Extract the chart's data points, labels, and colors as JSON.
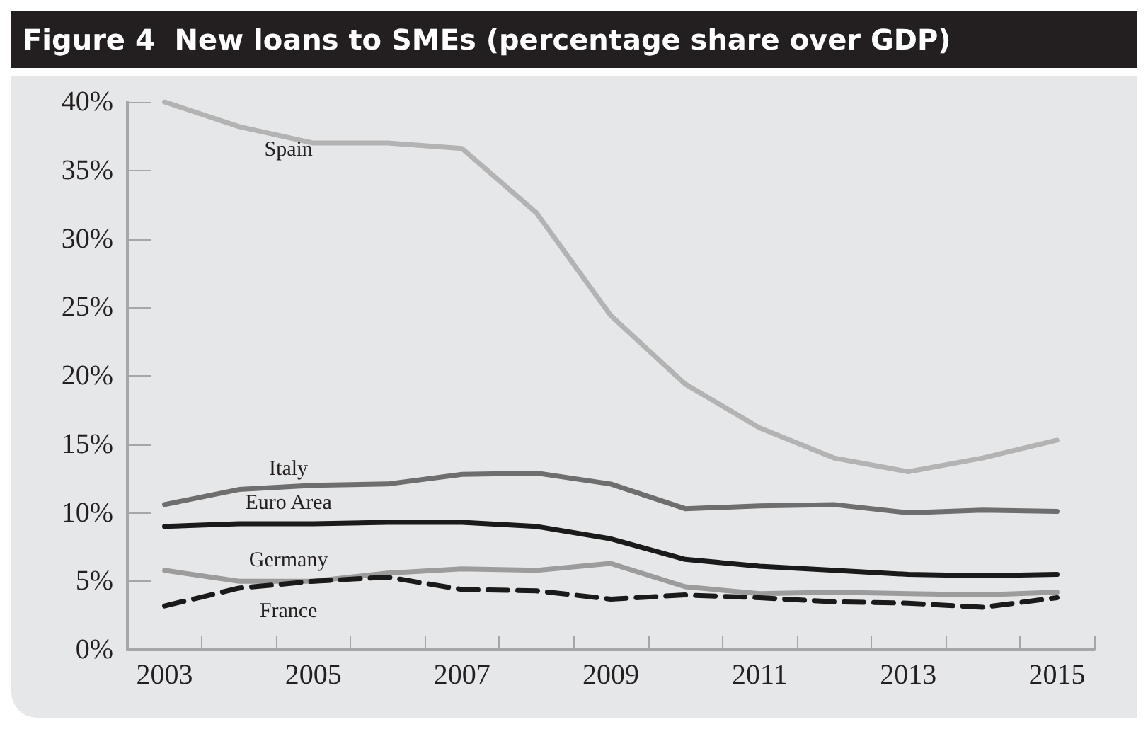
{
  "chart_data": {
    "type": "line",
    "title": "Figure 4  New loans to SMEs (percentage share over GDP)",
    "categories": [
      "2003",
      null,
      "2005",
      null,
      "2007",
      null,
      "2009",
      null,
      "2011",
      null,
      "2013",
      null,
      "2015"
    ],
    "series": [
      {
        "name": "Spain",
        "color": "#b3b3b3",
        "values": [
          40.0,
          38.2,
          37.0,
          37.0,
          36.6,
          31.9,
          24.4,
          19.4,
          16.2,
          14.0,
          13.0,
          14.0,
          15.3
        ]
      },
      {
        "name": "Italy",
        "color": "#6e6e6e",
        "values": [
          10.6,
          11.7,
          12.0,
          12.1,
          12.8,
          12.9,
          12.1,
          10.3,
          10.5,
          10.6,
          10.0,
          10.2,
          10.1
        ]
      },
      {
        "name": "Euro Area",
        "color": "#1a1a1a",
        "values": [
          9.0,
          9.2,
          9.2,
          9.3,
          9.3,
          9.0,
          8.1,
          6.6,
          6.1,
          5.8,
          5.5,
          5.4,
          5.5
        ]
      },
      {
        "name": "Germany",
        "color": "#9c9c9c",
        "values": [
          5.8,
          5.0,
          5.0,
          5.6,
          5.9,
          5.8,
          6.3,
          4.6,
          4.1,
          4.2,
          4.1,
          4.0,
          4.2
        ]
      },
      {
        "name": "France",
        "color": "#1a1a1a",
        "line_style": "dashed",
        "values": [
          3.2,
          4.5,
          5.0,
          5.3,
          4.4,
          4.3,
          3.7,
          4.0,
          3.8,
          3.5,
          3.4,
          3.1,
          3.8
        ]
      }
    ],
    "ylim": [
      0,
      40
    ],
    "yticks": [
      {
        "value": 0,
        "label": "0%"
      },
      {
        "value": 5,
        "label": "5%"
      },
      {
        "value": 10,
        "label": "10%"
      },
      {
        "value": 15,
        "label": "15%"
      },
      {
        "value": 20,
        "label": "20%"
      },
      {
        "value": 25,
        "label": "25%"
      },
      {
        "value": 30,
        "label": "30%"
      },
      {
        "value": 35,
        "label": "35%"
      },
      {
        "value": 40,
        "label": "40%"
      }
    ],
    "grid": false,
    "legend": false,
    "marker": "none",
    "line_style": "solid"
  }
}
